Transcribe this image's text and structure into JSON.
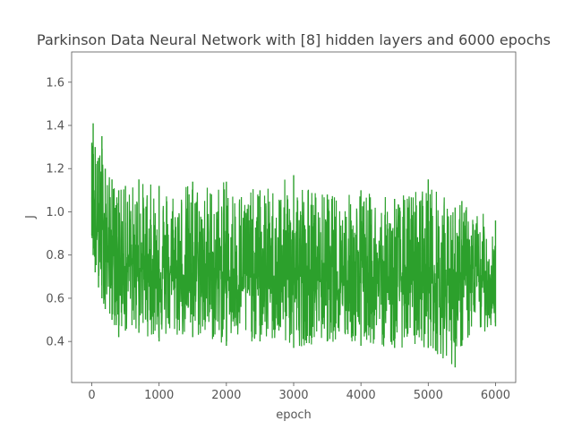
{
  "chart_data": {
    "type": "line",
    "title": "Parkinson Data Neural Network with [8] hidden layers and 6000 epochs",
    "xlabel": "epoch",
    "ylabel": "J",
    "xlim": [
      -300,
      6300
    ],
    "ylim": [
      0.21,
      1.74
    ],
    "xticks": [
      0,
      1000,
      2000,
      3000,
      4000,
      5000,
      6000
    ],
    "yticks": [
      0.4,
      0.6,
      0.8,
      1.0,
      1.2,
      1.4,
      1.6
    ],
    "xtick_labels": [
      "0",
      "1000",
      "2000",
      "3000",
      "4000",
      "5000",
      "6000"
    ],
    "ytick_labels": [
      "0.4",
      "0.6",
      "0.8",
      "1.0",
      "1.2",
      "1.4",
      "1.6"
    ],
    "grid": false,
    "legend": "none",
    "series": [
      {
        "color": "#2ca02c",
        "x_range": [
          0,
          6000
        ],
        "envelope_x": [
          0,
          20,
          50,
          100,
          150,
          200,
          300,
          400,
          500,
          700,
          1000,
          1500,
          2000,
          2500,
          3000,
          3500,
          4000,
          4500,
          5000,
          5400,
          5500,
          6000
        ],
        "envelope_mean": [
          1.1,
          1.0,
          0.95,
          0.9,
          0.87,
          0.85,
          0.8,
          0.78,
          0.76,
          0.74,
          0.72,
          0.71,
          0.7,
          0.7,
          0.69,
          0.69,
          0.69,
          0.68,
          0.68,
          0.68,
          0.68,
          0.68
        ],
        "envelope_max": [
          1.32,
          1.41,
          1.3,
          1.25,
          1.35,
          1.2,
          1.15,
          1.1,
          1.12,
          1.15,
          1.12,
          1.14,
          1.14,
          1.1,
          1.17,
          1.08,
          1.1,
          1.06,
          1.15,
          1.02,
          1.05,
          0.96
        ],
        "envelope_min": [
          0.89,
          0.8,
          0.72,
          0.65,
          0.6,
          0.55,
          0.5,
          0.42,
          0.45,
          0.44,
          0.4,
          0.42,
          0.38,
          0.4,
          0.37,
          0.4,
          0.38,
          0.37,
          0.37,
          0.28,
          0.38,
          0.47
        ]
      }
    ]
  }
}
